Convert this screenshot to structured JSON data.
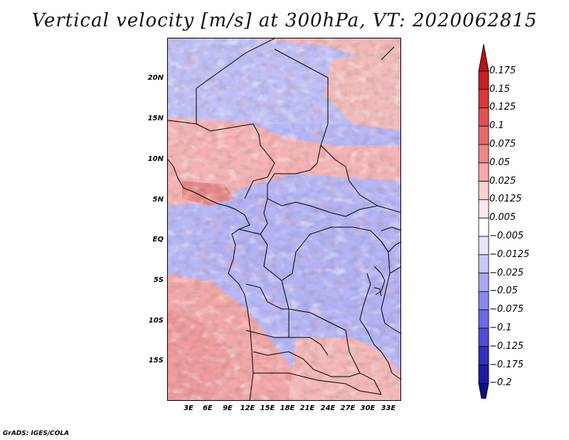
{
  "title": "Vertical velocity [m/s] at 300hPa, VT: 2020062815",
  "footer": "GrADS: IGES/COLA",
  "map": {
    "lat_ticks": [
      "20N",
      "15N",
      "10N",
      "5N",
      "EQ",
      "5S",
      "10S",
      "15S"
    ],
    "lon_ticks": [
      "3E",
      "6E",
      "9E",
      "12E",
      "15E",
      "18E",
      "21E",
      "24E",
      "27E",
      "30E",
      "33E"
    ]
  },
  "colorbar": {
    "labels": [
      "0.175",
      "0.15",
      "0.125",
      "0.1",
      "0.075",
      "0.05",
      "0.025",
      "0.0125",
      "0.005",
      "−0.005",
      "−0.0125",
      "−0.025",
      "−0.05",
      "−0.075",
      "−0.1",
      "−0.125",
      "−0.175",
      "−0.2"
    ],
    "colors": [
      "#b41414",
      "#c62020",
      "#d83838",
      "#e45050",
      "#ec6868",
      "#f08888",
      "#f5aaaa",
      "#fad0d0",
      "#fde9e9",
      "#ffffff",
      "#e6e6fb",
      "#c8c8f8",
      "#a8a8f4",
      "#8888ec",
      "#6a6ae4",
      "#4c4cd8",
      "#3030c4",
      "#1c1ca8",
      "#0e0e7a"
    ]
  }
}
